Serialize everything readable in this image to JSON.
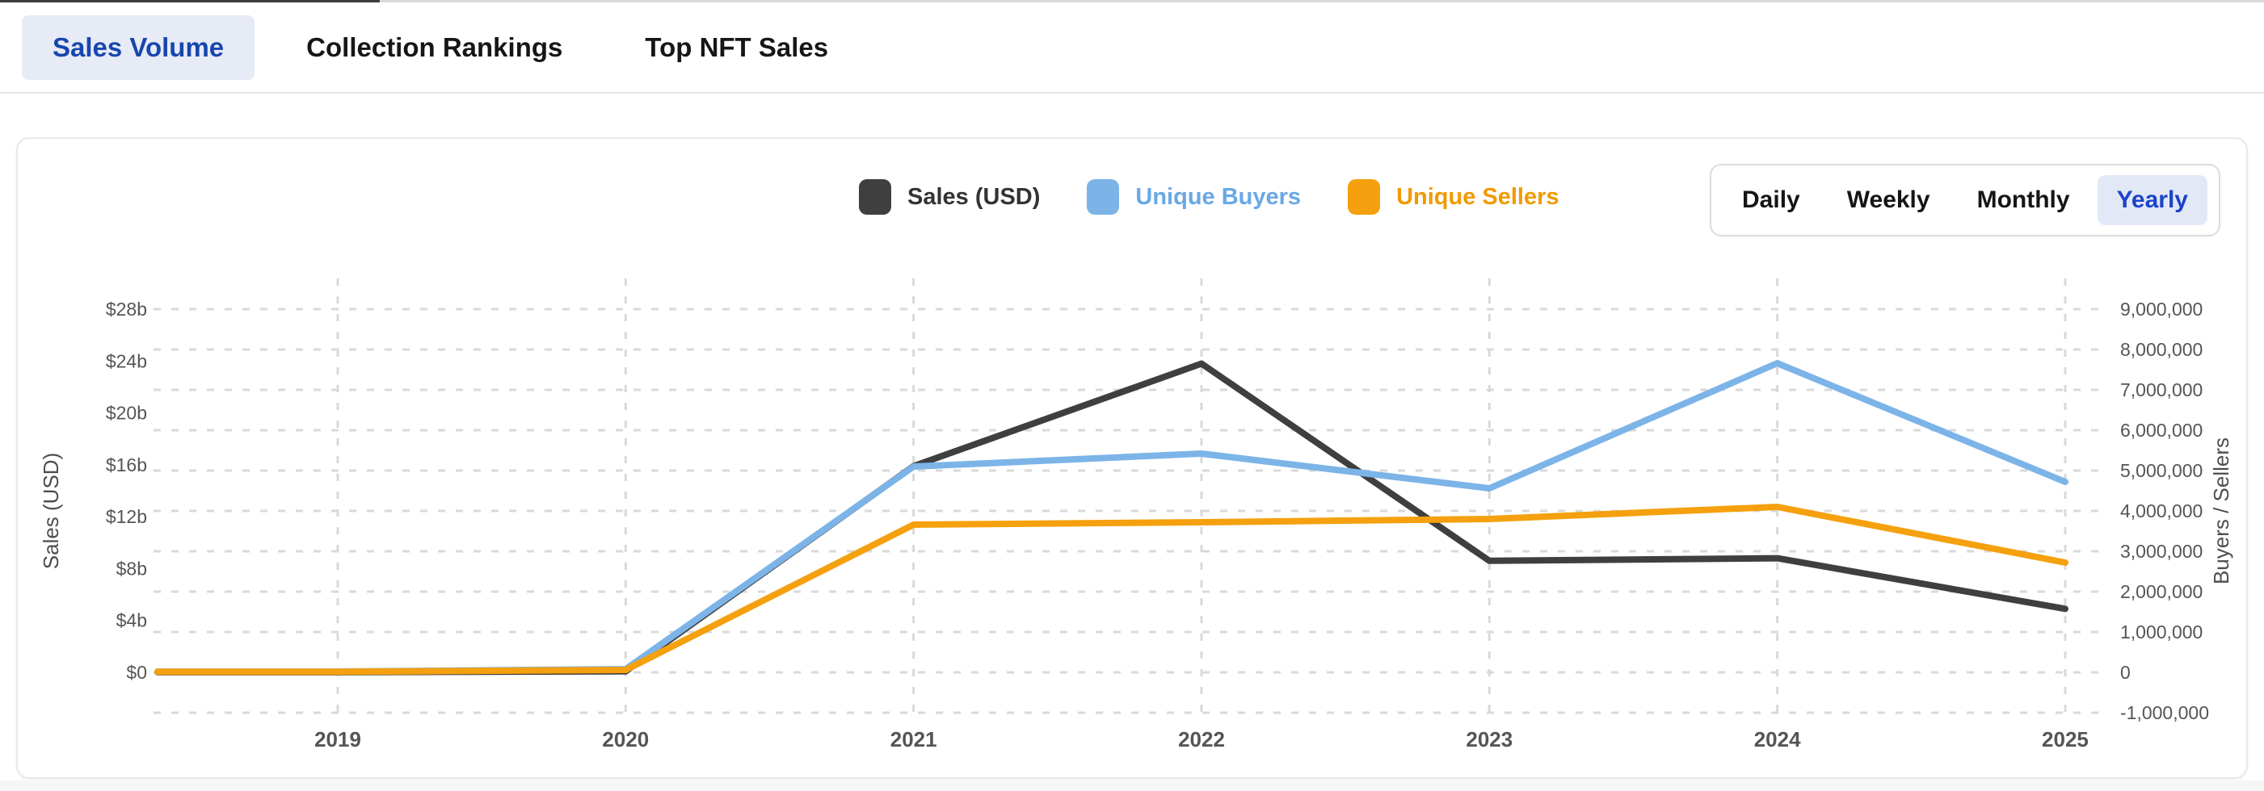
{
  "tabs": {
    "items": [
      {
        "label": "Sales Volume",
        "active": true
      },
      {
        "label": "Collection Rankings",
        "active": false
      },
      {
        "label": "Top NFT Sales",
        "active": false
      }
    ]
  },
  "legend": {
    "items": [
      {
        "label": "Sales (USD)",
        "swatch_color": "#3f3f3f",
        "label_color": "#333333"
      },
      {
        "label": "Unique Buyers",
        "swatch_color": "#7cb4e8",
        "label_color": "#69a8e6"
      },
      {
        "label": "Unique Sellers",
        "swatch_color": "#f5a00e",
        "label_color": "#f09a00"
      }
    ]
  },
  "period_control": {
    "options": [
      "Daily",
      "Weekly",
      "Monthly",
      "Yearly"
    ],
    "selected": "Yearly",
    "active_bg": "#e3e8f7",
    "active_text": "#1b44c8"
  },
  "chart_data": {
    "type": "line",
    "x": [
      2019,
      2020,
      2021,
      2022,
      2023,
      2024,
      2025
    ],
    "series": [
      {
        "name": "Sales (USD)",
        "axis": "left",
        "color": "#3f3f3f",
        "values": [
          20000000,
          80000000,
          15900000000,
          23800000000,
          8600000000,
          8800000000,
          4900000000
        ]
      },
      {
        "name": "Unique Buyers",
        "axis": "right",
        "color": "#7cb4e8",
        "values": [
          20000,
          80000,
          5100000,
          5420000,
          4560000,
          7660000,
          4720000
        ]
      },
      {
        "name": "Unique Sellers",
        "axis": "right",
        "color": "#f5a00e",
        "values": [
          15000,
          60000,
          3660000,
          3720000,
          3800000,
          4100000,
          2720000
        ]
      }
    ],
    "left_axis": {
      "title": "Sales (USD)",
      "tick_labels": [
        "$28b",
        "$24b",
        "$20b",
        "$16b",
        "$12b",
        "$8b",
        "$4b",
        "$0"
      ],
      "tick_values_billions": [
        28,
        24,
        20,
        16,
        12,
        8,
        4,
        0
      ],
      "min": 0,
      "max": 28000000000
    },
    "right_axis": {
      "title": "Buyers / Sellers",
      "tick_labels": [
        "9,000,000",
        "8,000,000",
        "7,000,000",
        "6,000,000",
        "5,000,000",
        "4,000,000",
        "3,000,000",
        "2,000,000",
        "1,000,000",
        "0",
        "-1,000,000"
      ],
      "tick_values": [
        9000000,
        8000000,
        7000000,
        6000000,
        5000000,
        4000000,
        3000000,
        2000000,
        1000000,
        0,
        -1000000
      ],
      "min": -1000000,
      "max": 9000000
    },
    "x_tick_labels": [
      "2019",
      "2020",
      "2021",
      "2022",
      "2023",
      "2024",
      "2025"
    ],
    "grid": "dashed",
    "grid_color": "#d9d9d9",
    "legend_position": "top-center",
    "text_color": "#555555"
  }
}
